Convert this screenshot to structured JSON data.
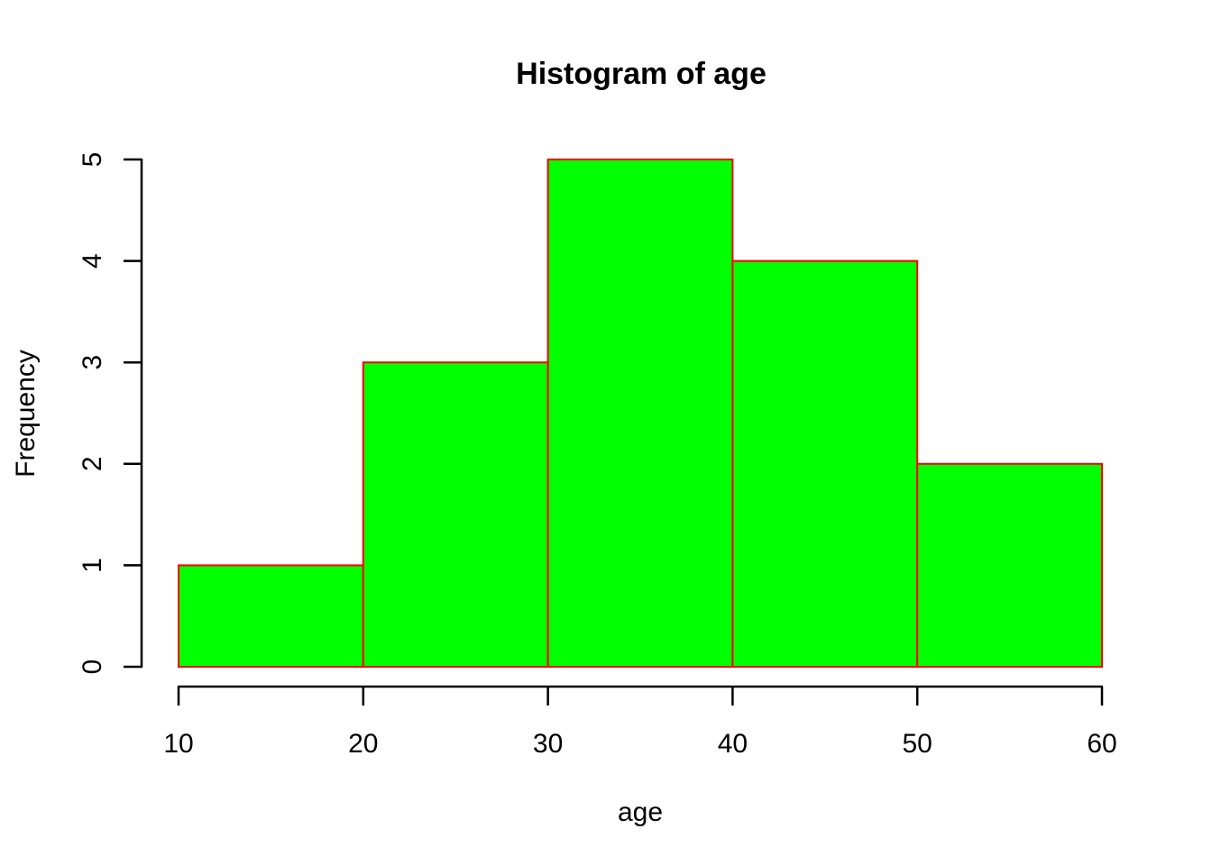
{
  "chart_data": {
    "type": "bar",
    "chart_kind": "histogram",
    "title": "Histogram of age",
    "xlabel": "age",
    "ylabel": "Frequency",
    "bin_edges": [
      10,
      20,
      30,
      40,
      50,
      60
    ],
    "counts": [
      1,
      3,
      5,
      4,
      2
    ],
    "categories": [
      "10-20",
      "20-30",
      "30-40",
      "40-50",
      "50-60"
    ],
    "values": [
      1,
      3,
      5,
      4,
      2
    ],
    "x_ticks": [
      10,
      20,
      30,
      40,
      50,
      60
    ],
    "y_ticks": [
      0,
      1,
      2,
      3,
      4,
      5
    ],
    "xlim": [
      10,
      60
    ],
    "ylim": [
      0,
      5
    ],
    "grid": false,
    "legend_position": "none",
    "colors": {
      "bar_fill": "#00FF00",
      "bar_border": "#FF0000",
      "axis": "#000000",
      "text": "#000000",
      "background": "#FFFFFF"
    }
  }
}
